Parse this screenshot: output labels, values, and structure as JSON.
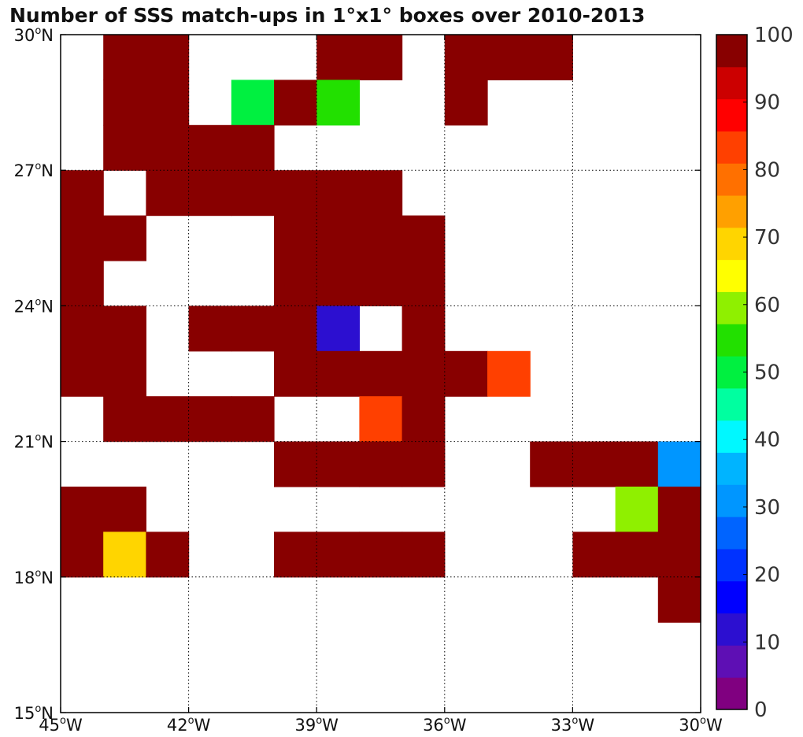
{
  "chart_data": {
    "type": "heatmap",
    "title": "Number of SSS match-ups in 1°x1° boxes over 2010-2013",
    "xlabel": "",
    "ylabel": "",
    "x_range": [
      -45,
      -30
    ],
    "y_range": [
      15,
      30
    ],
    "x_ticks": [
      {
        "value": -45,
        "deg": "45",
        "hemi": "W"
      },
      {
        "value": -42,
        "deg": "42",
        "hemi": "W"
      },
      {
        "value": -39,
        "deg": "39",
        "hemi": "W"
      },
      {
        "value": -36,
        "deg": "36",
        "hemi": "W"
      },
      {
        "value": -33,
        "deg": "33",
        "hemi": "W"
      },
      {
        "value": -30,
        "deg": "30",
        "hemi": "W"
      }
    ],
    "y_ticks": [
      {
        "value": 30,
        "deg": "30",
        "hemi": "N"
      },
      {
        "value": 27,
        "deg": "27",
        "hemi": "N"
      },
      {
        "value": 24,
        "deg": "24",
        "hemi": "N"
      },
      {
        "value": 21,
        "deg": "21",
        "hemi": "N"
      },
      {
        "value": 18,
        "deg": "18",
        "hemi": "N"
      },
      {
        "value": 15,
        "deg": "15",
        "hemi": "N"
      }
    ],
    "grid": true,
    "cell_size_deg": 1,
    "colorbar": {
      "min": 0,
      "max": 100,
      "step": 5,
      "tick_labels": [
        "0",
        "10",
        "20",
        "30",
        "40",
        "50",
        "60",
        "70",
        "80",
        "90",
        "100"
      ],
      "colors": [
        "#800080",
        "#5e0fb4",
        "#2c0fd0",
        "#0000ff",
        "#0032ff",
        "#0064ff",
        "#0096ff",
        "#00b4ff",
        "#00f8ff",
        "#00ffa0",
        "#00f040",
        "#22e000",
        "#8ff000",
        "#ffff00",
        "#ffd500",
        "#ffa000",
        "#ff7000",
        "#ff4000",
        "#ff0000",
        "#cc0000",
        "#880000"
      ]
    },
    "cells": [
      {
        "lon": -44,
        "lat": 29,
        "value": 100
      },
      {
        "lon": -43,
        "lat": 29,
        "value": 100
      },
      {
        "lon": -39,
        "lat": 29,
        "value": 100
      },
      {
        "lon": -38,
        "lat": 29,
        "value": 100
      },
      {
        "lon": -36,
        "lat": 29,
        "value": 100
      },
      {
        "lon": -35,
        "lat": 29,
        "value": 100
      },
      {
        "lon": -34,
        "lat": 29,
        "value": 100
      },
      {
        "lon": -44,
        "lat": 28,
        "value": 100
      },
      {
        "lon": -43,
        "lat": 28,
        "value": 100
      },
      {
        "lon": -41,
        "lat": 28,
        "value": 50
      },
      {
        "lon": -40,
        "lat": 28,
        "value": 100
      },
      {
        "lon": -39,
        "lat": 28,
        "value": 58
      },
      {
        "lon": -36,
        "lat": 28,
        "value": 100
      },
      {
        "lon": -44,
        "lat": 27,
        "value": 100
      },
      {
        "lon": -43,
        "lat": 27,
        "value": 100
      },
      {
        "lon": -42,
        "lat": 27,
        "value": 100
      },
      {
        "lon": -41,
        "lat": 27,
        "value": 100
      },
      {
        "lon": -45,
        "lat": 26,
        "value": 100
      },
      {
        "lon": -43,
        "lat": 26,
        "value": 100
      },
      {
        "lon": -42,
        "lat": 26,
        "value": 100
      },
      {
        "lon": -41,
        "lat": 26,
        "value": 100
      },
      {
        "lon": -40,
        "lat": 26,
        "value": 100
      },
      {
        "lon": -39,
        "lat": 26,
        "value": 100
      },
      {
        "lon": -38,
        "lat": 26,
        "value": 100
      },
      {
        "lon": -45,
        "lat": 25,
        "value": 100
      },
      {
        "lon": -44,
        "lat": 25,
        "value": 100
      },
      {
        "lon": -40,
        "lat": 25,
        "value": 100
      },
      {
        "lon": -39,
        "lat": 25,
        "value": 100
      },
      {
        "lon": -38,
        "lat": 25,
        "value": 100
      },
      {
        "lon": -37,
        "lat": 25,
        "value": 100
      },
      {
        "lon": -45,
        "lat": 24,
        "value": 100
      },
      {
        "lon": -40,
        "lat": 24,
        "value": 100
      },
      {
        "lon": -39,
        "lat": 24,
        "value": 100
      },
      {
        "lon": -38,
        "lat": 24,
        "value": 100
      },
      {
        "lon": -37,
        "lat": 24,
        "value": 100
      },
      {
        "lon": -45,
        "lat": 23,
        "value": 100
      },
      {
        "lon": -44,
        "lat": 23,
        "value": 100
      },
      {
        "lon": -42,
        "lat": 23,
        "value": 100
      },
      {
        "lon": -41,
        "lat": 23,
        "value": 100
      },
      {
        "lon": -40,
        "lat": 23,
        "value": 100
      },
      {
        "lon": -39,
        "lat": 23,
        "value": 12
      },
      {
        "lon": -37,
        "lat": 23,
        "value": 100
      },
      {
        "lon": -45,
        "lat": 22,
        "value": 100
      },
      {
        "lon": -44,
        "lat": 22,
        "value": 100
      },
      {
        "lon": -40,
        "lat": 22,
        "value": 100
      },
      {
        "lon": -39,
        "lat": 22,
        "value": 100
      },
      {
        "lon": -38,
        "lat": 22,
        "value": 100
      },
      {
        "lon": -37,
        "lat": 22,
        "value": 100
      },
      {
        "lon": -36,
        "lat": 22,
        "value": 100
      },
      {
        "lon": -35,
        "lat": 22,
        "value": 86
      },
      {
        "lon": -44,
        "lat": 21,
        "value": 100
      },
      {
        "lon": -43,
        "lat": 21,
        "value": 100
      },
      {
        "lon": -42,
        "lat": 21,
        "value": 100
      },
      {
        "lon": -41,
        "lat": 21,
        "value": 100
      },
      {
        "lon": -38,
        "lat": 21,
        "value": 86
      },
      {
        "lon": -37,
        "lat": 21,
        "value": 100
      },
      {
        "lon": -40,
        "lat": 20,
        "value": 100
      },
      {
        "lon": -39,
        "lat": 20,
        "value": 100
      },
      {
        "lon": -38,
        "lat": 20,
        "value": 100
      },
      {
        "lon": -37,
        "lat": 20,
        "value": 100
      },
      {
        "lon": -34,
        "lat": 20,
        "value": 100
      },
      {
        "lon": -33,
        "lat": 20,
        "value": 100
      },
      {
        "lon": -32,
        "lat": 20,
        "value": 100
      },
      {
        "lon": -31,
        "lat": 20,
        "value": 32
      },
      {
        "lon": -45,
        "lat": 19,
        "value": 100
      },
      {
        "lon": -44,
        "lat": 19,
        "value": 100
      },
      {
        "lon": -32,
        "lat": 19,
        "value": 62
      },
      {
        "lon": -31,
        "lat": 19,
        "value": 100
      },
      {
        "lon": -45,
        "lat": 18,
        "value": 100
      },
      {
        "lon": -44,
        "lat": 18,
        "value": 72
      },
      {
        "lon": -43,
        "lat": 18,
        "value": 100
      },
      {
        "lon": -40,
        "lat": 18,
        "value": 100
      },
      {
        "lon": -39,
        "lat": 18,
        "value": 100
      },
      {
        "lon": -38,
        "lat": 18,
        "value": 100
      },
      {
        "lon": -37,
        "lat": 18,
        "value": 100
      },
      {
        "lon": -33,
        "lat": 18,
        "value": 100
      },
      {
        "lon": -32,
        "lat": 18,
        "value": 100
      },
      {
        "lon": -31,
        "lat": 18,
        "value": 100
      },
      {
        "lon": -31,
        "lat": 17,
        "value": 100
      }
    ]
  }
}
